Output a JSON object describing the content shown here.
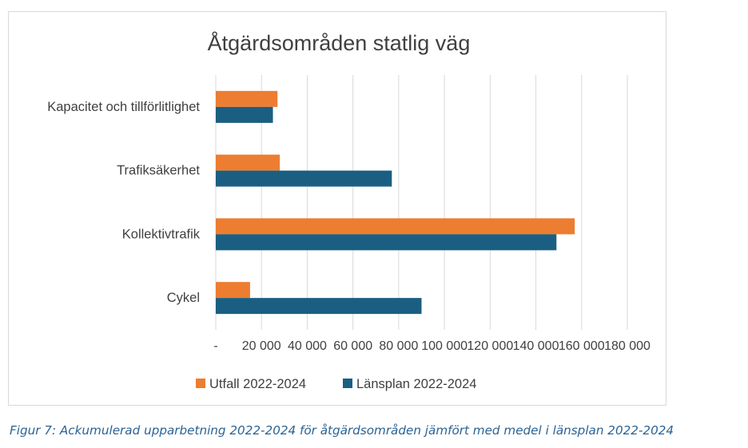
{
  "chart_data": {
    "type": "bar",
    "orientation": "horizontal",
    "title": "Åtgärdsområden statlig väg",
    "categories": [
      "Kapacitet och tillförlitlighet",
      "Trafiksäkerhet",
      "Kollektivtrafik",
      "Cykel"
    ],
    "series": [
      {
        "name": "Utfall 2022-2024",
        "color": "#ed7d31",
        "values": [
          27000,
          28000,
          157000,
          15000
        ]
      },
      {
        "name": "Länsplan 2022-2024",
        "color": "#1a5f82",
        "values": [
          25000,
          77000,
          149000,
          90000
        ]
      }
    ],
    "x_ticks": [
      "-",
      "20 000",
      "40 000",
      "60 000",
      "80 000",
      "100 000",
      "120 000",
      "140 000",
      "160 000",
      "180 000"
    ],
    "xlim": [
      0,
      180000
    ],
    "grid": "vertical",
    "legend_position": "bottom"
  },
  "caption": "Figur 7: Ackumulerad upparbetning 2022-2024 för åtgärdsområden jämfört med medel i länsplan 2022-2024"
}
